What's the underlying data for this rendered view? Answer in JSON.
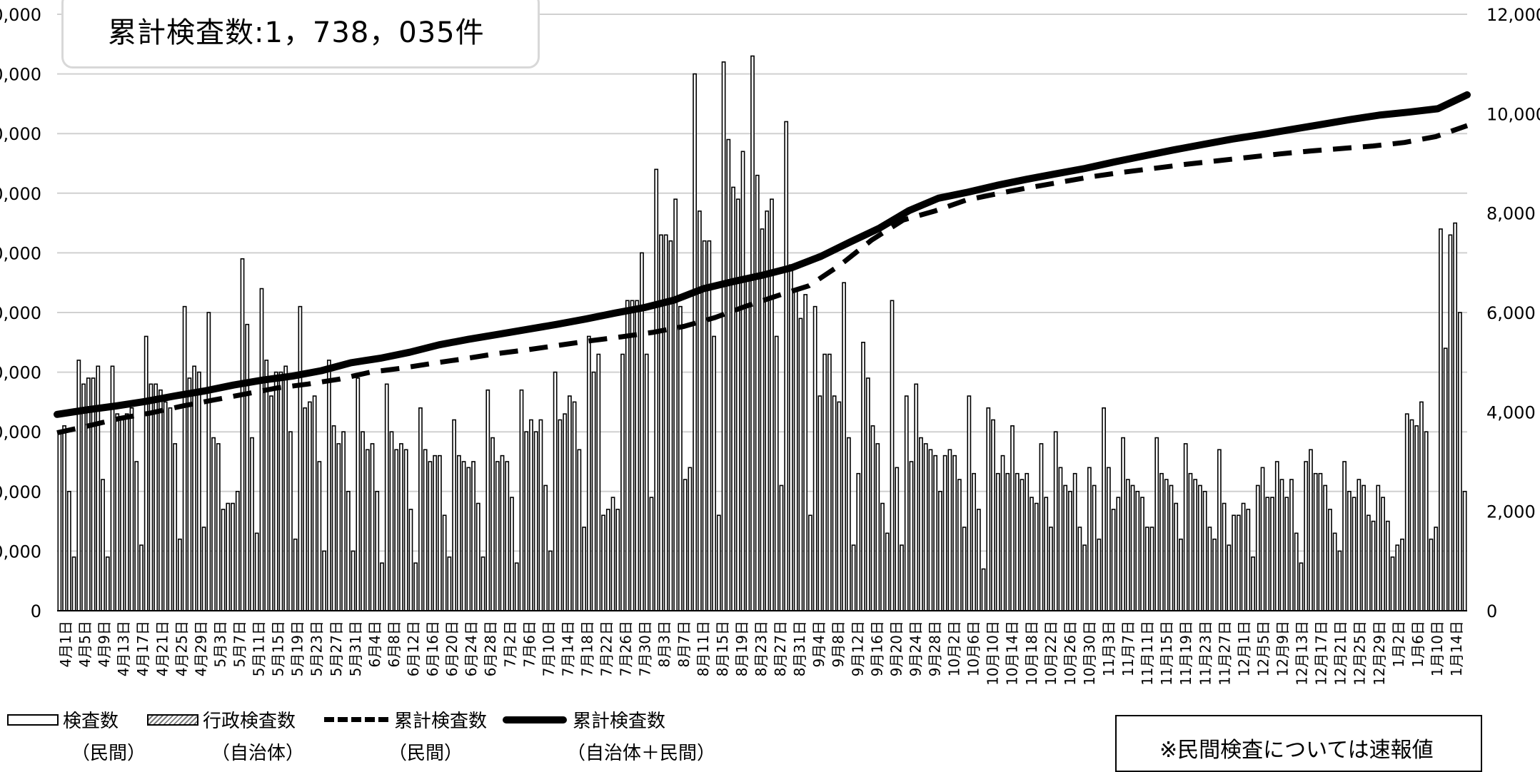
{
  "chart_data": {
    "type": "bar",
    "total_label": "累計検査数:1，738，035件",
    "note": "※民間検査については速報値",
    "y_left_ticks": [
      "0",
      "0,000",
      "0,000",
      "0,000",
      "0,000",
      "0,000",
      "0,000",
      "0,000",
      "0,000",
      "0,000",
      "0,000"
    ],
    "y_right_ticks": [
      "0",
      "2,000",
      "4,000",
      "6,000",
      "8,000",
      "10,000",
      "12,000"
    ],
    "y_right_range": [
      0,
      12000
    ],
    "legend": [
      {
        "label": "検査数",
        "sub": "（民間）",
        "style": "white-bar"
      },
      {
        "label": "行政検査数",
        "sub": "（自治体）",
        "style": "hatched-bar"
      },
      {
        "label": "累計検査数",
        "sub": "（民間）",
        "style": "dashed-line"
      },
      {
        "label": "累計検査数",
        "sub": "（自治体＋民間）",
        "style": "solid-line"
      }
    ],
    "x_tick_labels": [
      "4月1日",
      "4月5日",
      "4月9日",
      "4月13日",
      "4月17日",
      "4月21日",
      "4月25日",
      "4月29日",
      "5月3日",
      "5月7日",
      "5月11日",
      "5月15日",
      "5月19日",
      "5月23日",
      "5月27日",
      "5月31日",
      "6月4日",
      "6月8日",
      "6月12日",
      "6月16日",
      "6月20日",
      "6月24日",
      "6月28日",
      "7月2日",
      "7月6日",
      "7月10日",
      "7月14日",
      "7月18日",
      "7月22日",
      "7月26日",
      "7月30日",
      "8月3日",
      "8月7日",
      "8月11日",
      "8月15日",
      "8月19日",
      "8月23日",
      "8月27日",
      "8月31日",
      "9月4日",
      "9月8日",
      "9月12日",
      "9月16日",
      "9月20日",
      "9月24日",
      "9月28日",
      "10月2日",
      "10月6日",
      "10月10日",
      "10月14日",
      "10月18日",
      "10月22日",
      "10月26日",
      "10月30日",
      "11月3日",
      "11月7日",
      "11月11日",
      "11月15日",
      "11月19日",
      "11月23日",
      "11月27日",
      "12月1日",
      "12月5日",
      "12月9日",
      "12月13日",
      "12月17日",
      "12月21日",
      "12月25日",
      "12月29日",
      "1月2日",
      "1月6日",
      "1月10日",
      "1月14日"
    ],
    "bar_values_left_axis_fraction": [
      0.3,
      0.31,
      0.2,
      0.09,
      0.42,
      0.38,
      0.39,
      0.39,
      0.41,
      0.22,
      0.09,
      0.41,
      0.33,
      0.32,
      0.33,
      0.34,
      0.25,
      0.11,
      0.46,
      0.38,
      0.38,
      0.37,
      0.35,
      0.34,
      0.28,
      0.12,
      0.51,
      0.39,
      0.41,
      0.4,
      0.14,
      0.5,
      0.29,
      0.28,
      0.17,
      0.18,
      0.18,
      0.2,
      0.59,
      0.48,
      0.29,
      0.13,
      0.54,
      0.42,
      0.36,
      0.4,
      0.4,
      0.41,
      0.3,
      0.12,
      0.51,
      0.34,
      0.35,
      0.36,
      0.25,
      0.1,
      0.42,
      0.31,
      0.28,
      0.3,
      0.2,
      0.1,
      0.39,
      0.3,
      0.27,
      0.28,
      0.2,
      0.08,
      0.38,
      0.3,
      0.27,
      0.28,
      0.27,
      0.17,
      0.08,
      0.34,
      0.27,
      0.25,
      0.26,
      0.26,
      0.16,
      0.09,
      0.32,
      0.26,
      0.25,
      0.24,
      0.25,
      0.18,
      0.09,
      0.37,
      0.29,
      0.25,
      0.26,
      0.25,
      0.19,
      0.08,
      0.37,
      0.3,
      0.32,
      0.3,
      0.32,
      0.21,
      0.1,
      0.4,
      0.32,
      0.33,
      0.36,
      0.35,
      0.27,
      0.14,
      0.46,
      0.4,
      0.43,
      0.16,
      0.17,
      0.19,
      0.17,
      0.43,
      0.52,
      0.52,
      0.52,
      0.6,
      0.43,
      0.19,
      0.74,
      0.63,
      0.63,
      0.62,
      0.69,
      0.51,
      0.22,
      0.24,
      0.9,
      0.67,
      0.62,
      0.62,
      0.46,
      0.16,
      0.92,
      0.79,
      0.71,
      0.69,
      0.77,
      0.56,
      0.93,
      0.73,
      0.64,
      0.67,
      0.69,
      0.46,
      0.21,
      0.82,
      0.58,
      0.54,
      0.49,
      0.53,
      0.16,
      0.51,
      0.36,
      0.43,
      0.43,
      0.36,
      0.35,
      0.55,
      0.29,
      0.11,
      0.23,
      0.45,
      0.39,
      0.31,
      0.28,
      0.18,
      0.13,
      0.52,
      0.24,
      0.11,
      0.36,
      0.25,
      0.38,
      0.29,
      0.28,
      0.27,
      0.26,
      0.2,
      0.26,
      0.27,
      0.26,
      0.22,
      0.14,
      0.36,
      0.23,
      0.17,
      0.07,
      0.34,
      0.32,
      0.23,
      0.26,
      0.23,
      0.31,
      0.23,
      0.22,
      0.23,
      0.19,
      0.18,
      0.28,
      0.19,
      0.14,
      0.3,
      0.24,
      0.21,
      0.2,
      0.23,
      0.14,
      0.11,
      0.24,
      0.21,
      0.12,
      0.34,
      0.24,
      0.17,
      0.19,
      0.29,
      0.22,
      0.21,
      0.2,
      0.19,
      0.14,
      0.14,
      0.29,
      0.23,
      0.22,
      0.21,
      0.18,
      0.12,
      0.28,
      0.23,
      0.22,
      0.21,
      0.2,
      0.14,
      0.12,
      0.27,
      0.18,
      0.11,
      0.16,
      0.16,
      0.18,
      0.17,
      0.09,
      0.21,
      0.24,
      0.19,
      0.19,
      0.25,
      0.22,
      0.19,
      0.22,
      0.13,
      0.08,
      0.25,
      0.27,
      0.23,
      0.23,
      0.21,
      0.17,
      0.13,
      0.1,
      0.25,
      0.2,
      0.19,
      0.22,
      0.21,
      0.16,
      0.15,
      0.21,
      0.19,
      0.15,
      0.09,
      0.11,
      0.12,
      0.33,
      0.32,
      0.31,
      0.35,
      0.3,
      0.12,
      0.14,
      0.64,
      0.44,
      0.63,
      0.65,
      0.5,
      0.2
    ],
    "solid_line_right_axis": [
      3950,
      4040,
      4120,
      4210,
      4320,
      4420,
      4540,
      4640,
      4720,
      4830,
      4990,
      5080,
      5200,
      5350,
      5460,
      5560,
      5660,
      5760,
      5870,
      5990,
      6100,
      6250,
      6480,
      6620,
      6750,
      6900,
      7130,
      7420,
      7700,
      8050,
      8300,
      8420,
      8560,
      8680,
      8790,
      8900,
      9030,
      9150,
      9270,
      9380,
      9490,
      9580,
      9680,
      9780,
      9880,
      9970,
      10030,
      10100,
      10380
    ],
    "dashed_line_right_axis": [
      3580,
      3720,
      3870,
      3980,
      4120,
      4240,
      4360,
      4480,
      4560,
      4660,
      4800,
      4880,
      4980,
      5070,
      5170,
      5250,
      5340,
      5430,
      5510,
      5600,
      5720,
      5900,
      6130,
      6340,
      6540,
      6960,
      7460,
      7860,
      8040,
      8260,
      8390,
      8510,
      8620,
      8730,
      8820,
      8900,
      8980,
      9050,
      9120,
      9190,
      9250,
      9300,
      9350,
      9420,
      9540,
      9760
    ]
  }
}
